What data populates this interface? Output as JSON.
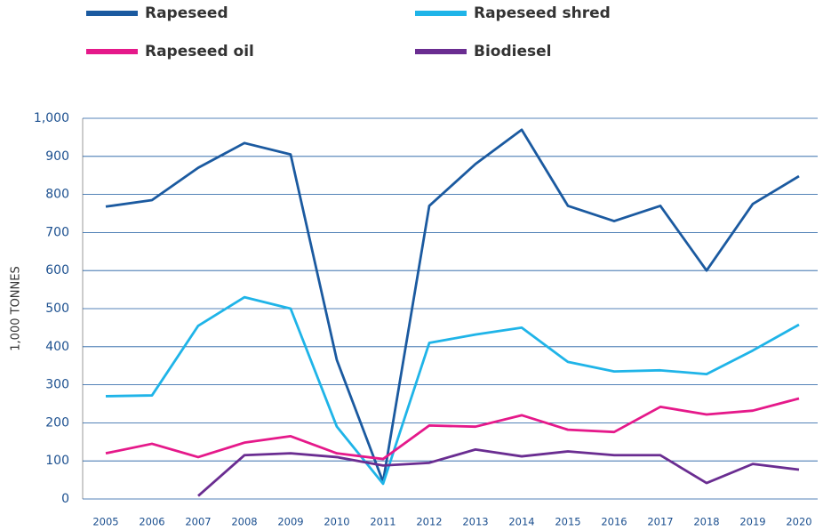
{
  "chart_data": {
    "type": "line",
    "y_label": "1,000 TONNES",
    "categories": [
      "2005",
      "2006",
      "2007",
      "2008",
      "2009",
      "2010",
      "2011",
      "2012",
      "2013",
      "2014",
      "2015",
      "2016",
      "2017",
      "2018",
      "2019",
      "2020"
    ],
    "series": [
      {
        "name": "Rapeseed",
        "color": "#1b5aa0",
        "values": [
          768,
          785,
          870,
          935,
          905,
          365,
          45,
          770,
          880,
          970,
          770,
          730,
          770,
          600,
          775,
          848
        ]
      },
      {
        "name": "Rapeseed shred",
        "color": "#1fb4e8",
        "values": [
          270,
          272,
          455,
          530,
          500,
          190,
          40,
          410,
          432,
          450,
          360,
          335,
          338,
          328,
          390,
          458
        ]
      },
      {
        "name": "Rapeseed oil",
        "color": "#e5198a",
        "values": [
          120,
          145,
          110,
          148,
          165,
          120,
          105,
          193,
          190,
          220,
          182,
          176,
          242,
          222,
          232,
          264
        ]
      },
      {
        "name": "Biodiesel",
        "color": "#6a2d91",
        "values": [
          null,
          null,
          8,
          115,
          120,
          110,
          88,
          95,
          130,
          112,
          125,
          115,
          115,
          42,
          92,
          77
        ]
      }
    ],
    "ylim": [
      0,
      1000
    ],
    "yticks": [
      0,
      100,
      200,
      300,
      400,
      500,
      600,
      700,
      800,
      900,
      {
        "value": 1000,
        "label": "1,000"
      }
    ],
    "grid": true
  }
}
